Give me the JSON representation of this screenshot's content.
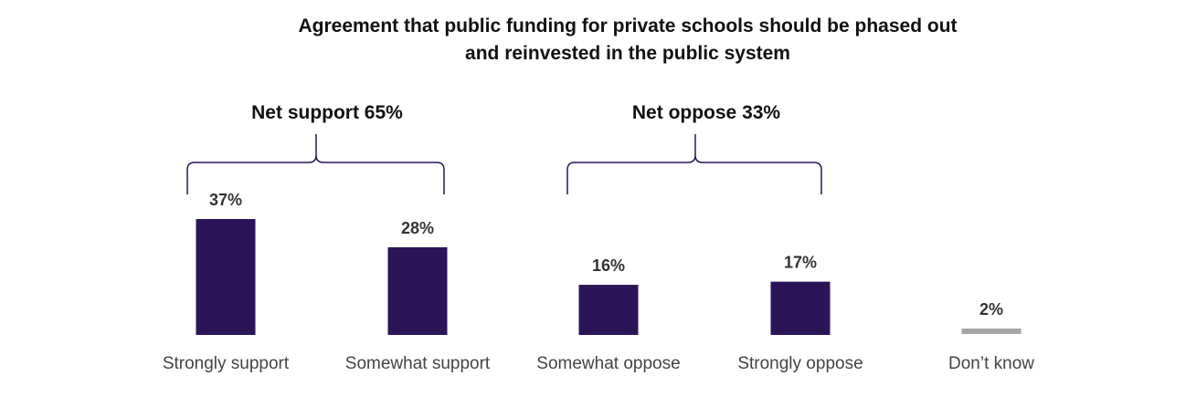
{
  "chart_data": {
    "type": "bar",
    "title_lines": [
      "Agreement that public funding for private schools should be phased out",
      "and reinvested in the public system"
    ],
    "categories": [
      "Strongly support",
      "Somewhat support",
      "Somewhat oppose",
      "Strongly oppose",
      "Don’t know"
    ],
    "values": [
      37,
      28,
      16,
      17,
      2
    ],
    "value_labels": [
      "37%",
      "28%",
      "16%",
      "17%",
      "2%"
    ],
    "colors": [
      "#2b1558",
      "#2b1558",
      "#2b1558",
      "#2b1558",
      "#a6a6a6"
    ],
    "groups": [
      {
        "label": "Net support 65%",
        "value": 65,
        "members": [
          0,
          1
        ]
      },
      {
        "label": "Net oppose 33%",
        "value": 33,
        "members": [
          2,
          3
        ]
      }
    ],
    "ylim": [
      0,
      40
    ],
    "grid": false,
    "legend": "none"
  }
}
